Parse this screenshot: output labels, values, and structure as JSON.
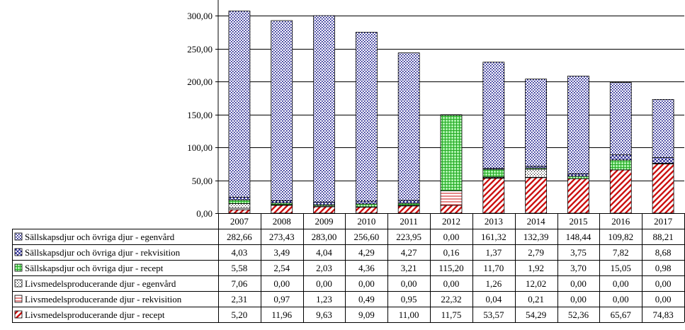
{
  "chart_data": {
    "type": "bar",
    "stacked": true,
    "categories": [
      "2007",
      "2008",
      "2009",
      "2010",
      "2011",
      "2012",
      "2013",
      "2014",
      "2015",
      "2016",
      "2017"
    ],
    "ylim": [
      0,
      300
    ],
    "yticks": [
      0,
      50,
      100,
      150,
      200,
      250,
      300
    ],
    "ytick_labels": [
      "0,00",
      "50,00",
      "100,00",
      "150,00",
      "200,00",
      "250,00",
      "300,00"
    ],
    "grid": true,
    "legend": "data-table-below",
    "series": [
      {
        "name": "Livsmedelsproducerande djur - recept",
        "values": [
          5.2,
          11.96,
          9.63,
          9.09,
          11.0,
          11.75,
          53.57,
          54.29,
          52.36,
          65.67,
          74.83
        ],
        "labels": [
          "5,20",
          "11,96",
          "9,63",
          "9,09",
          "11,00",
          "11,75",
          "53,57",
          "54,29",
          "52,36",
          "65,67",
          "74,83"
        ],
        "color": "#cc0000",
        "pattern": "diagonal-red"
      },
      {
        "name": "Livsmedelsproducerande djur - rekvisition",
        "values": [
          2.31,
          0.97,
          1.23,
          0.49,
          0.95,
          22.32,
          0.04,
          0.21,
          0.0,
          0.0,
          0.0
        ],
        "labels": [
          "2,31",
          "0,97",
          "1,23",
          "0,49",
          "0,95",
          "22,32",
          "0,04",
          "0,21",
          "0,00",
          "0,00",
          "0,00"
        ],
        "color": "#cc0000",
        "pattern": "horizontal-red"
      },
      {
        "name": "Livsmedelsproducerande djur - egenvård",
        "values": [
          7.06,
          0.0,
          0.0,
          0.0,
          0.0,
          0.0,
          1.26,
          12.02,
          0.0,
          0.0,
          0.0
        ],
        "labels": [
          "7,06",
          "0,00",
          "0,00",
          "0,00",
          "0,00",
          "0,00",
          "1,26",
          "12,02",
          "0,00",
          "0,00",
          "0,00"
        ],
        "color": "#000000",
        "pattern": "dotted-grid"
      },
      {
        "name": "Sällskapsdjur och övriga djur - recept",
        "values": [
          5.58,
          2.54,
          2.03,
          4.36,
          3.21,
          115.2,
          11.7,
          1.92,
          3.7,
          15.05,
          0.98
        ],
        "labels": [
          "5,58",
          "2,54",
          "2,03",
          "4,36",
          "3,21",
          "115,20",
          "11,70",
          "1,92",
          "3,70",
          "15,05",
          "0,98"
        ],
        "color": "#33aa33",
        "pattern": "green-grid"
      },
      {
        "name": "Sällskapsdjur och övriga djur - rekvisition",
        "values": [
          4.03,
          3.49,
          4.04,
          4.29,
          4.27,
          0.16,
          1.37,
          2.79,
          3.75,
          7.82,
          8.68
        ],
        "labels": [
          "4,03",
          "3,49",
          "4,04",
          "4,29",
          "4,27",
          "0,16",
          "1,37",
          "2,79",
          "3,75",
          "7,82",
          "8,68"
        ],
        "color": "#000080",
        "pattern": "cross"
      },
      {
        "name": "Sällskapsdjur och övriga djur - egenvård",
        "values": [
          282.66,
          273.43,
          283.0,
          256.6,
          223.95,
          0.0,
          161.32,
          132.39,
          148.44,
          109.82,
          88.21
        ],
        "labels": [
          "282,66",
          "273,43",
          "283,00",
          "256,60",
          "223,95",
          "0,00",
          "161,32",
          "132,39",
          "148,44",
          "109,82",
          "88,21"
        ],
        "color": "#000080",
        "pattern": "navy-dots"
      }
    ]
  }
}
